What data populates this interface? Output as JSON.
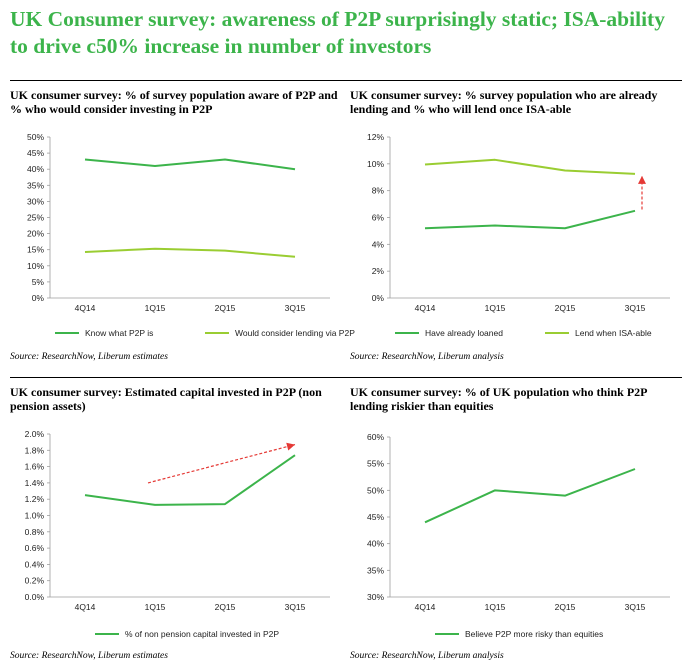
{
  "title": "UK Consumer survey: awareness of P2P surprisingly static; ISA-ability to drive c50% increase in number of investors",
  "colors": {
    "title": "#3cb44b",
    "dark_green": "#3cb44b",
    "light_green": "#9acd32",
    "arrow": "#e53935",
    "axis": "#9e9e9e"
  },
  "chart_data": [
    {
      "type": "line",
      "title": "UK consumer survey: % of survey population aware of P2P and % who would consider investing in P2P",
      "categories": [
        "4Q14",
        "1Q15",
        "2Q15",
        "3Q15"
      ],
      "ylim": [
        0,
        50
      ],
      "yticks": [
        0,
        5,
        10,
        15,
        20,
        25,
        30,
        35,
        40,
        45,
        50
      ],
      "yformat": "pct0",
      "series": [
        {
          "name": "Know what P2P is",
          "values": [
            43,
            41,
            43,
            40
          ],
          "color": "#3cb44b"
        },
        {
          "name": "Would consider lending via P2P",
          "values": [
            14.3,
            15.3,
            14.7,
            12.8
          ],
          "color": "#9acd32"
        }
      ],
      "legend": "bottom",
      "source": "Source: ResearchNow, Liberum estimates"
    },
    {
      "type": "line",
      "title": "UK consumer survey: % survey population who are already lending and % who will lend once ISA-able",
      "categories": [
        "4Q14",
        "1Q15",
        "2Q15",
        "3Q15"
      ],
      "ylim": [
        0,
        12
      ],
      "yticks": [
        0,
        2,
        4,
        6,
        8,
        10,
        12
      ],
      "yformat": "pct0",
      "series": [
        {
          "name": "Have already loaned",
          "values": [
            5.2,
            5.4,
            5.2,
            6.5
          ],
          "color": "#3cb44b"
        },
        {
          "name": "Lend when ISA-able",
          "values": [
            9.95,
            10.3,
            9.5,
            9.25
          ],
          "color": "#9acd32"
        }
      ],
      "arrow": {
        "from": [
          3.1,
          6.6
        ],
        "to": [
          3.1,
          9.1
        ]
      },
      "legend": "bottom",
      "source": "Source: ResearchNow, Liberum analysis"
    },
    {
      "type": "line",
      "title": "UK consumer survey: Estimated capital invested in P2P (non pension assets)",
      "categories": [
        "4Q14",
        "1Q15",
        "2Q15",
        "3Q15"
      ],
      "ylim": [
        0,
        2.0
      ],
      "yticks": [
        0,
        0.2,
        0.4,
        0.6,
        0.8,
        1.0,
        1.2,
        1.4,
        1.6,
        1.8,
        2.0
      ],
      "yformat": "pct1",
      "series": [
        {
          "name": "% of non pension capital invested in P2P",
          "values": [
            1.25,
            1.13,
            1.14,
            1.74
          ],
          "color": "#3cb44b"
        }
      ],
      "arrow": {
        "from": [
          0.9,
          1.4
        ],
        "to": [
          3.0,
          1.87
        ]
      },
      "legend": "bottom",
      "source": "Source: ResearchNow, Liberum estimates"
    },
    {
      "type": "line",
      "title": "UK consumer survey: % of UK population who think P2P lending riskier than equities",
      "categories": [
        "4Q14",
        "1Q15",
        "2Q15",
        "3Q15"
      ],
      "ylim": [
        30,
        60
      ],
      "yticks": [
        30,
        35,
        40,
        45,
        50,
        55,
        60
      ],
      "yformat": "pct0",
      "series": [
        {
          "name": "Believe P2P more risky than equities",
          "values": [
            44,
            50,
            49,
            54
          ],
          "color": "#3cb44b"
        }
      ],
      "legend": "bottom",
      "source": "Source: ResearchNow, Liberum analysis"
    }
  ]
}
